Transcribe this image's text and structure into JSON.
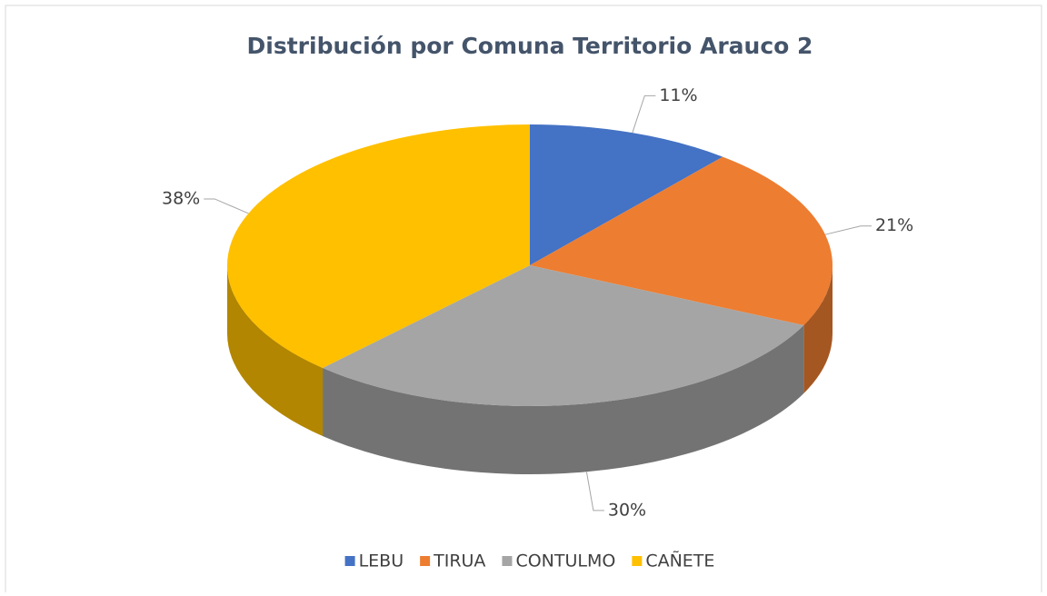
{
  "chart_data": {
    "type": "pie",
    "title": "Distribución por Comuna Territorio Arauco 2",
    "categories": [
      "LEBU",
      "TIRUA",
      "CONTULMO",
      "CAÑETE"
    ],
    "values": [
      11,
      21,
      30,
      38
    ],
    "value_labels": [
      "11%",
      "21%",
      "30%",
      "38%"
    ],
    "colors": [
      "#4472c4",
      "#ed7d31",
      "#a5a5a5",
      "#ffc000"
    ],
    "legend": "bottom"
  }
}
